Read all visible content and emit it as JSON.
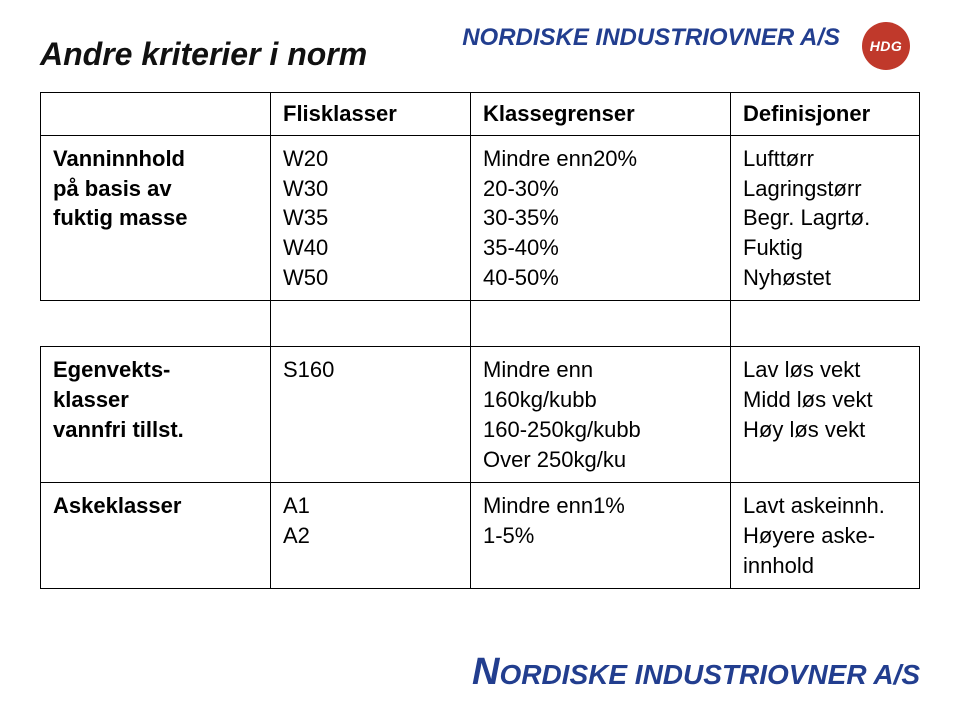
{
  "brand_top": "NORDISKE INDUSTRIOVNER A/S",
  "logo_text": "HDG",
  "title": "Andre kriterier i norm",
  "columns": {
    "blank": "",
    "c1": "Flisklasser",
    "c2": "Klassegrenser",
    "c3": "Definisjoner"
  },
  "rows": {
    "r1": {
      "head": "Vanninnhold\npå basis av\nfuktig masse",
      "c1": "W20\nW30\nW35\nW40\nW50",
      "c2": "Mindre enn20%\n20-30%\n30-35%\n35-40%\n40-50%",
      "c3": "Lufttørr\nLagringstørr\nBegr. Lagrtø.\nFuktig\nNyhøstet"
    },
    "r2": {
      "head": "Egenvekts-\nklasser\nvannfri tillst.",
      "c1": "S160",
      "c2": "Mindre enn\n160kg/kubb\n160-250kg/kubb\nOver 250kg/ku",
      "c3": "Lav løs vekt\nMidd løs vekt\nHøy løs vekt"
    },
    "r3": {
      "head": "Askeklasser",
      "c1": "A1\nA2",
      "c2": "Mindre enn1%\n1-5%",
      "c3": "Lavt askeinnh.\nHøyere aske-\ninnhold"
    }
  },
  "brand_bottom_first": "N",
  "brand_bottom_rest": "ORDISKE INDUSTRIOVNER A/S"
}
